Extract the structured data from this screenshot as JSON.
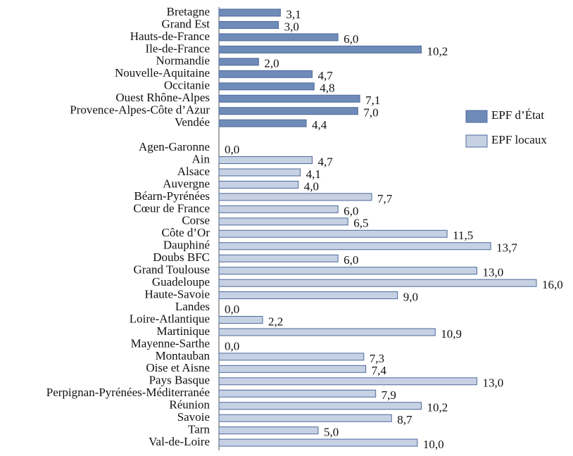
{
  "chart_data": {
    "type": "bar",
    "orientation": "horizontal",
    "categories": [
      "Bretagne",
      "Grand Est",
      "Hauts-de-France",
      "Ile-de-France",
      "Normandie",
      "Nouvelle-Aquitaine",
      "Occitanie",
      "Ouest Rhône-Alpes",
      "Provence-Alpes-Côte d’Azur",
      "Vendée",
      null,
      "Agen-Garonne",
      "Ain",
      "Alsace",
      "Auvergne",
      "Béarn-Pyrénées",
      "Cœur de France",
      "Corse",
      "Côte d’Or",
      "Dauphiné",
      "Doubs BFC",
      "Grand Toulouse",
      "Guadeloupe",
      "Haute-Savoie",
      "Landes",
      "Loire-Atlantique",
      "Martinique",
      "Mayenne-Sarthe",
      "Montauban",
      "Oise et Aisne",
      "Pays Basque",
      "Perpignan-Pyrénées-Méditerranée",
      "Réunion",
      "Savoie",
      "Tarn",
      "Val-de-Loire"
    ],
    "series": [
      {
        "name": "EPF d’État",
        "color": "#6f8bb8",
        "values": [
          3.1,
          3.0,
          6.0,
          10.2,
          2.0,
          4.7,
          4.8,
          7.1,
          7.0,
          4.4,
          null,
          null,
          null,
          null,
          null,
          null,
          null,
          null,
          null,
          null,
          null,
          null,
          null,
          null,
          null,
          null,
          null,
          null,
          null,
          null,
          null,
          null,
          null,
          null,
          null,
          null
        ],
        "value_labels": [
          "3,1",
          "3,0",
          "6,0",
          "10,2",
          "2,0",
          "4,7",
          "4,8",
          "7,1",
          "7,0",
          "4,4",
          null,
          null,
          null,
          null,
          null,
          null,
          null,
          null,
          null,
          null,
          null,
          null,
          null,
          null,
          null,
          null,
          null,
          null,
          null,
          null,
          null,
          null,
          null,
          null,
          null,
          null
        ]
      },
      {
        "name": "EPF locaux",
        "color": "#c6d1e4",
        "values": [
          null,
          null,
          null,
          null,
          null,
          null,
          null,
          null,
          null,
          null,
          null,
          0.0,
          4.7,
          4.1,
          4.0,
          7.7,
          6.0,
          6.5,
          11.5,
          13.7,
          6.0,
          13.0,
          16.0,
          9.0,
          0.0,
          2.2,
          10.9,
          0.0,
          7.3,
          7.4,
          13.0,
          7.9,
          10.2,
          8.7,
          5.0,
          10.0
        ],
        "value_labels": [
          null,
          null,
          null,
          null,
          null,
          null,
          null,
          null,
          null,
          null,
          null,
          "0,0",
          "4,7",
          "4,1",
          "4,0",
          "7,7",
          "6,0",
          "6,5",
          "11,5",
          "13,7",
          "6,0",
          "13,0",
          "16,0",
          "9,0",
          "0,0",
          "2,2",
          "10,9",
          "0,0",
          "7,3",
          "7,4",
          "13,0",
          "7,9",
          "10,2",
          "8,7",
          "5,0",
          "10,0"
        ]
      }
    ]
  }
}
